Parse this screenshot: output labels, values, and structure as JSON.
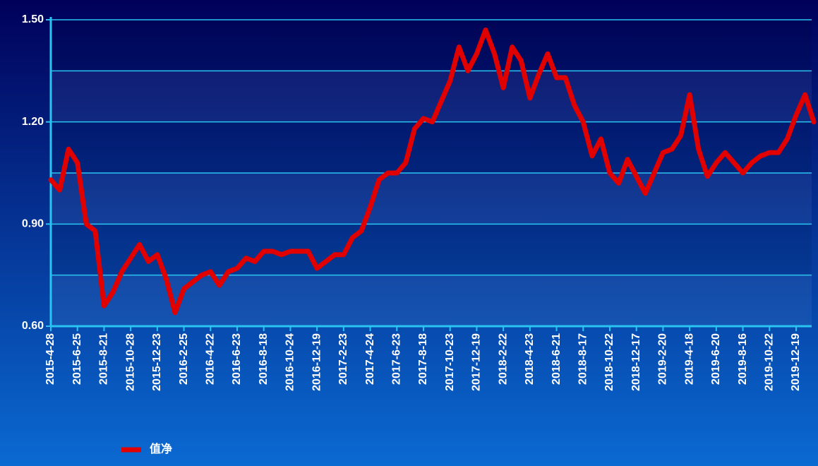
{
  "chart_data": {
    "type": "line",
    "categories": [
      "2015-4-28",
      null,
      null,
      "2015-6-25",
      null,
      null,
      "2015-8-21",
      null,
      null,
      "2015-10-28",
      null,
      null,
      "2015-12-23",
      null,
      null,
      "2016-2-25",
      null,
      null,
      "2016-4-22",
      null,
      null,
      "2016-6-23",
      null,
      null,
      "2016-8-18",
      null,
      null,
      "2016-10-24",
      null,
      null,
      "2016-12-19",
      null,
      null,
      "2017-2-23",
      null,
      null,
      "2017-4-24",
      null,
      null,
      "2017-6-23",
      null,
      null,
      "2017-8-18",
      null,
      null,
      "2017-10-23",
      null,
      null,
      "2017-12-19",
      null,
      null,
      "2018-2-22",
      null,
      null,
      "2018-4-23",
      null,
      null,
      "2018-6-21",
      null,
      null,
      "2018-8-17",
      null,
      null,
      "2018-10-22",
      null,
      null,
      "2018-12-17",
      null,
      null,
      "2019-2-20",
      null,
      null,
      "2019-4-18",
      null,
      null,
      "2019-6-20",
      null,
      null,
      "2019-8-16",
      null,
      null,
      "2019-10-22",
      null,
      null,
      "2019-12-19",
      null,
      null
    ],
    "series": [
      {
        "name": "值净",
        "color": "#e00000",
        "values": [
          1.03,
          1.0,
          1.12,
          1.08,
          0.9,
          0.88,
          0.66,
          0.7,
          0.76,
          0.8,
          0.84,
          0.79,
          0.81,
          0.74,
          0.64,
          0.71,
          0.73,
          0.75,
          0.76,
          0.72,
          0.76,
          0.77,
          0.8,
          0.79,
          0.82,
          0.82,
          0.81,
          0.82,
          0.82,
          0.82,
          0.77,
          0.79,
          0.81,
          0.81,
          0.86,
          0.88,
          0.95,
          1.03,
          1.05,
          1.05,
          1.08,
          1.18,
          1.21,
          1.2,
          1.26,
          1.32,
          1.42,
          1.35,
          1.4,
          1.47,
          1.4,
          1.3,
          1.42,
          1.38,
          1.27,
          1.34,
          1.4,
          1.33,
          1.33,
          1.25,
          1.2,
          1.1,
          1.15,
          1.05,
          1.02,
          1.09,
          1.04,
          0.99,
          1.05,
          1.11,
          1.12,
          1.16,
          1.28,
          1.12,
          1.04,
          1.08,
          1.11,
          1.08,
          1.05,
          1.08,
          1.1,
          1.11,
          1.11,
          1.15,
          1.22,
          1.28,
          1.2
        ]
      }
    ],
    "ylim": [
      0.6,
      1.5
    ],
    "yticks": [
      {
        "value": 0.6,
        "label": "0.60"
      },
      {
        "value": 0.9,
        "label": "0.90"
      },
      {
        "value": 1.2,
        "label": "1.20"
      },
      {
        "value": 1.5,
        "label": "1.50"
      }
    ],
    "ygrid": [
      0.6,
      0.75,
      0.9,
      1.05,
      1.2,
      1.35,
      1.5
    ],
    "grid": true,
    "legend": "bottom-left"
  }
}
